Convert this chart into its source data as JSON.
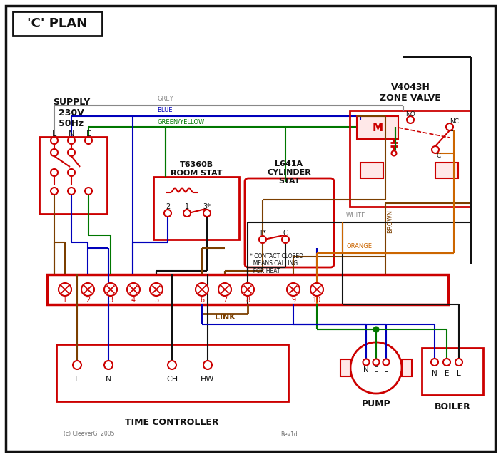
{
  "bg": "#ffffff",
  "R": "#cc0000",
  "BL": "#0000bb",
  "GR": "#007700",
  "BR": "#7b3f00",
  "GY": "#888888",
  "OR": "#cc6600",
  "BK": "#111111",
  "title": "'C' PLAN",
  "supply_label": "SUPPLY\n230V\n50Hz",
  "zone_valve_label": "V4043H\nZONE VALVE",
  "room_stat_label": "T6360B\nROOM STAT",
  "cyl_stat_label": "L641A\nCYLINDER\nSTAT",
  "time_ctrl_label": "TIME CONTROLLER",
  "pump_label": "PUMP",
  "boiler_label": "BOILER",
  "link_label": "LINK",
  "copyright": "(c) CleeverGi 2005",
  "rev": "Rev1d"
}
